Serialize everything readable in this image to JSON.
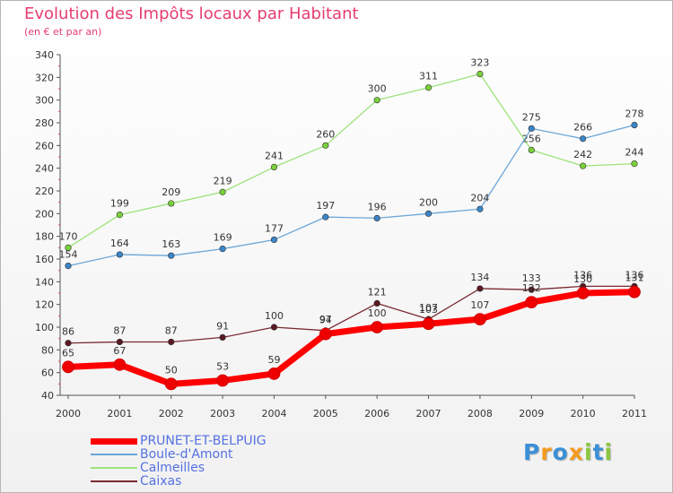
{
  "title": "Evolution des Impôts locaux par Habitant",
  "subtitle": "(en € et par an)",
  "logo": {
    "text": "Proxiti",
    "letters": [
      {
        "ch": "P",
        "color": "#3b8fd6"
      },
      {
        "ch": "r",
        "color": "#f39c1f"
      },
      {
        "ch": "o",
        "color": "#3b8fd6"
      },
      {
        "ch": "x",
        "color": "#f39c1f"
      },
      {
        "ch": "i",
        "color": "#8cc63f"
      },
      {
        "ch": "t",
        "color": "#3b8fd6"
      },
      {
        "ch": "i",
        "color": "#8cc63f"
      }
    ]
  },
  "chart_data": {
    "type": "line",
    "x": [
      "2000",
      "2001",
      "2002",
      "2003",
      "2004",
      "2005",
      "2006",
      "2007",
      "2008",
      "2009",
      "2010",
      "2011"
    ],
    "ylim": [
      40,
      340
    ],
    "yticks": [
      40,
      60,
      80,
      100,
      120,
      140,
      160,
      180,
      200,
      220,
      240,
      260,
      280,
      300,
      320,
      340
    ],
    "grid": false,
    "legend": "bottom-left",
    "series": [
      {
        "name": "Caixas",
        "color": "#7a2a34",
        "marker": "#5a1a22",
        "width": 1.3,
        "labelPos": "above",
        "values": [
          86,
          87,
          87,
          91,
          100,
          97,
          121,
          107,
          134,
          133,
          136,
          136
        ],
        "labels": [
          "86",
          "87",
          "87",
          "91",
          "100",
          "97",
          "121",
          "107",
          "134",
          "133",
          "136",
          "136"
        ]
      },
      {
        "name": "Calmeilles",
        "color": "#9ee27a",
        "marker": "#7ad03a",
        "width": 1.3,
        "labelPos": "above",
        "values": [
          170,
          199,
          209,
          219,
          241,
          260,
          300,
          311,
          323,
          256,
          242,
          244
        ],
        "labels": [
          "170",
          "199",
          "209",
          "219",
          "241",
          "260",
          "300",
          "311",
          "323",
          "256",
          "242",
          "244"
        ]
      },
      {
        "name": "Boule-d'Amont",
        "color": "#6aa6d8",
        "marker": "#3a85c8",
        "width": 1.3,
        "labelPos": "above",
        "values": [
          154,
          164,
          163,
          169,
          177,
          197,
          196,
          200,
          204,
          275,
          266,
          278
        ],
        "labels": [
          "154",
          "164",
          "163",
          "169",
          "177",
          "197",
          "196",
          "200",
          "204",
          "275",
          "266",
          "278"
        ]
      },
      {
        "name": "PRUNET-ET-BELPUIG",
        "color": "#ff0000",
        "marker": "#ee0000",
        "width": 7,
        "labelPos": "above",
        "values": [
          65,
          67,
          50,
          53,
          59,
          94,
          100,
          103,
          107,
          122,
          130,
          131
        ],
        "labels": [
          "65",
          "67",
          "50",
          "53",
          "59",
          "94",
          "100",
          "103",
          "107",
          "122",
          "130",
          "131"
        ]
      }
    ]
  },
  "legend_order": [
    "PRUNET-ET-BELPUIG",
    "Boule-d'Amont",
    "Calmeilles",
    "Caixas"
  ]
}
